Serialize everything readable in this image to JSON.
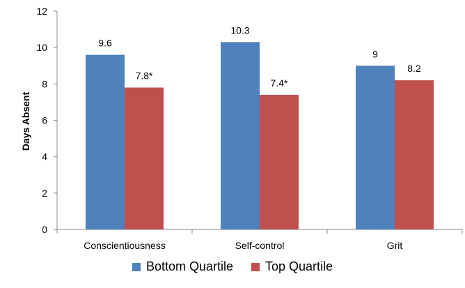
{
  "chart_data": {
    "type": "bar",
    "ylabel": "Days Absent",
    "xlabel": "",
    "ylim": [
      0,
      12
    ],
    "yticks": [
      0,
      2,
      4,
      6,
      8,
      10,
      12
    ],
    "categories": [
      "Conscientiousness",
      "Self-control",
      "Grit"
    ],
    "series": [
      {
        "name": "Bottom Quartile",
        "color": "#4F81BD",
        "values": [
          9.6,
          10.3,
          9.0
        ],
        "labels": [
          "9.6",
          "10.3",
          "9"
        ]
      },
      {
        "name": "Top Quartile",
        "color": "#C0504D",
        "values": [
          7.8,
          7.4,
          8.2
        ],
        "labels": [
          "7.8*",
          "7.4*",
          "8.2"
        ]
      }
    ],
    "grid": false,
    "legend_position": "bottom"
  }
}
